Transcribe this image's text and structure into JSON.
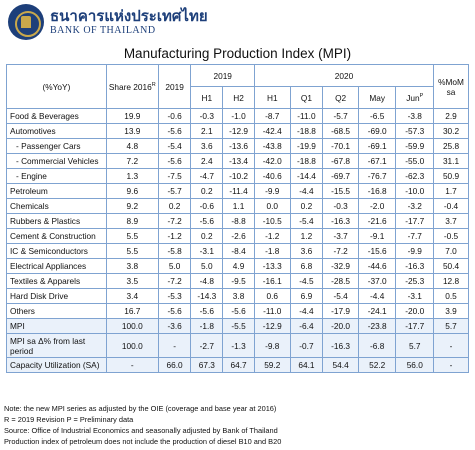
{
  "header": {
    "bank_name_th": "ธนาคารแห่งประเทศไทย",
    "bank_name_en": "BANK OF THAILAND",
    "logo_icon": "bank-of-thailand-seal-icon"
  },
  "title": "Manufacturing Production Index (MPI)",
  "table": {
    "head": {
      "yoy": "(%YoY)",
      "share": "Share 2016",
      "share_sup": "R",
      "y2019": "2019",
      "y2019_group": "2019",
      "y2020_group": "2020",
      "h1_2019": "H1",
      "h2_2019": "H2",
      "h1_2020": "H1",
      "q1": "Q1",
      "q2": "Q2",
      "may": "May",
      "jun": "Jun",
      "jun_sup": "P",
      "momsa": "%MoM sa"
    },
    "rows": [
      {
        "label": "Food & Beverages",
        "indent": false,
        "hl": false,
        "cells": [
          "19.9",
          "-0.6",
          "-0.3",
          "-1.0",
          "-8.7",
          "-11.0",
          "-5.7",
          "-6.5",
          "-3.8",
          "2.9"
        ]
      },
      {
        "label": "Automotives",
        "indent": false,
        "hl": false,
        "cells": [
          "13.9",
          "-5.6",
          "2.1",
          "-12.9",
          "-42.4",
          "-18.8",
          "-68.5",
          "-69.0",
          "-57.3",
          "30.2"
        ]
      },
      {
        "label": "- Passenger Cars",
        "indent": true,
        "hl": false,
        "cells": [
          "4.8",
          "-5.4",
          "3.6",
          "-13.6",
          "-43.8",
          "-19.9",
          "-70.1",
          "-69.1",
          "-59.9",
          "25.8"
        ]
      },
      {
        "label": "- Commercial Vehicles",
        "indent": true,
        "hl": false,
        "cells": [
          "7.2",
          "-5.6",
          "2.4",
          "-13.4",
          "-42.0",
          "-18.8",
          "-67.8",
          "-67.1",
          "-55.0",
          "31.1"
        ]
      },
      {
        "label": "- Engine",
        "indent": true,
        "hl": false,
        "cells": [
          "1.3",
          "-7.5",
          "-4.7",
          "-10.2",
          "-40.6",
          "-14.4",
          "-69.7",
          "-76.7",
          "-62.3",
          "50.9"
        ]
      },
      {
        "label": "Petroleum",
        "indent": false,
        "hl": false,
        "cells": [
          "9.6",
          "-5.7",
          "0.2",
          "-11.4",
          "-9.9",
          "-4.4",
          "-15.5",
          "-16.8",
          "-10.0",
          "1.7"
        ]
      },
      {
        "label": "Chemicals",
        "indent": false,
        "hl": false,
        "cells": [
          "9.2",
          "0.2",
          "-0.6",
          "1.1",
          "0.0",
          "0.2",
          "-0.3",
          "-2.0",
          "-3.2",
          "-0.4"
        ]
      },
      {
        "label": "Rubbers & Plastics",
        "indent": false,
        "hl": false,
        "cells": [
          "8.9",
          "-7.2",
          "-5.6",
          "-8.8",
          "-10.5",
          "-5.4",
          "-16.3",
          "-21.6",
          "-17.7",
          "3.7"
        ]
      },
      {
        "label": "Cement & Construction",
        "indent": false,
        "hl": false,
        "cells": [
          "5.5",
          "-1.2",
          "0.2",
          "-2.6",
          "-1.2",
          "1.2",
          "-3.7",
          "-9.1",
          "-7.7",
          "-0.5"
        ]
      },
      {
        "label": "IC & Semiconductors",
        "indent": false,
        "hl": false,
        "cells": [
          "5.5",
          "-5.8",
          "-3.1",
          "-8.4",
          "-1.8",
          "3.6",
          "-7.2",
          "-15.6",
          "-9.9",
          "7.0"
        ]
      },
      {
        "label": "Electrical Appliances",
        "indent": false,
        "hl": false,
        "cells": [
          "3.8",
          "5.0",
          "5.0",
          "4.9",
          "-13.3",
          "6.8",
          "-32.9",
          "-44.6",
          "-16.3",
          "50.4"
        ]
      },
      {
        "label": "Textiles & Apparels",
        "indent": false,
        "hl": false,
        "cells": [
          "3.5",
          "-7.2",
          "-4.8",
          "-9.5",
          "-16.1",
          "-4.5",
          "-28.5",
          "-37.0",
          "-25.3",
          "12.8"
        ]
      },
      {
        "label": "Hard Disk Drive",
        "indent": false,
        "hl": false,
        "cells": [
          "3.4",
          "-5.3",
          "-14.3",
          "3.8",
          "0.6",
          "6.9",
          "-5.4",
          "-4.4",
          "-3.1",
          "0.5"
        ]
      },
      {
        "label": "Others",
        "indent": false,
        "hl": false,
        "cells": [
          "16.7",
          "-5.6",
          "-5.6",
          "-5.6",
          "-11.0",
          "-4.4",
          "-17.9",
          "-24.1",
          "-20.0",
          "3.9"
        ]
      },
      {
        "label": "MPI",
        "indent": false,
        "hl": true,
        "cells": [
          "100.0",
          "-3.6",
          "-1.8",
          "-5.5",
          "-12.9",
          "-6.4",
          "-20.0",
          "-23.8",
          "-17.7",
          "5.7"
        ]
      },
      {
        "label": "MPI sa Δ% from last period",
        "indent": false,
        "hl": true,
        "tall": true,
        "cells": [
          "100.0",
          "-",
          "-2.7",
          "-1.3",
          "-9.8",
          "-0.7",
          "-16.3",
          "-6.8",
          "5.7",
          "-"
        ]
      },
      {
        "label": "Capacity Utilization (SA)",
        "indent": false,
        "hl": true,
        "cells": [
          "-",
          "66.0",
          "67.3",
          "64.7",
          "59.2",
          "64.1",
          "54.4",
          "52.2",
          "56.0",
          "-"
        ]
      }
    ]
  },
  "notes": [
    "Note: the new MPI series as adjusted by the OIE (coverage and base year at 2016)",
    "R = 2019 Revision      P = Preliminary data",
    "Source: Office of Industrial Economics and seasonally adjusted by Bank of Thailand",
    "Production index of petroleum does not include the production of diesel B10 and B20"
  ]
}
